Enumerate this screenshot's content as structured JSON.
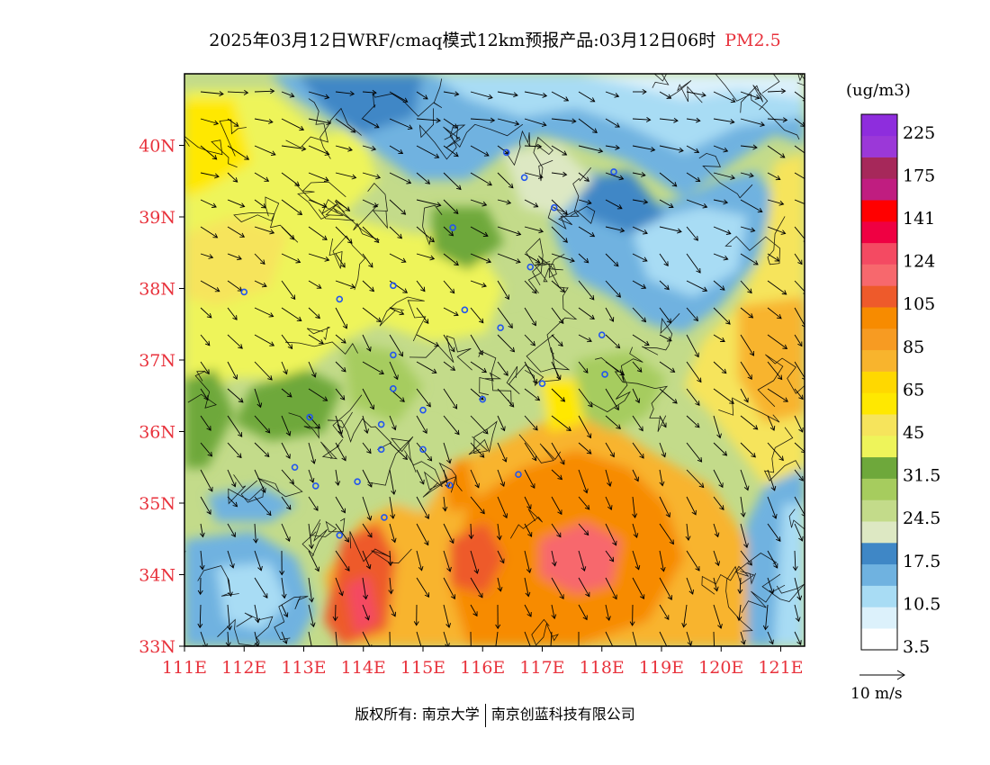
{
  "header": {
    "title": "2025年03月12日WRF/cmaq模式12km预报产品:03月12日06时",
    "pollutant": "PM2.5"
  },
  "map": {
    "lon_range": [
      111,
      121.4
    ],
    "lat_range": [
      33,
      41
    ],
    "x_ticks": [
      "111E",
      "112E",
      "113E",
      "114E",
      "115E",
      "116E",
      "117E",
      "118E",
      "119E",
      "120E",
      "121E"
    ],
    "y_ticks": [
      "33N",
      "34N",
      "35N",
      "36N",
      "37N",
      "38N",
      "39N",
      "40N"
    ],
    "tick_color": "#e8323c",
    "cities": [
      [
        116.4,
        39.9
      ],
      [
        116.7,
        39.55
      ],
      [
        117.2,
        39.13
      ],
      [
        118.2,
        39.63
      ],
      [
        115.5,
        38.85
      ],
      [
        116.8,
        38.3
      ],
      [
        114.5,
        38.04
      ],
      [
        113.6,
        37.85
      ],
      [
        112.0,
        37.95
      ],
      [
        115.7,
        37.7
      ],
      [
        116.3,
        37.45
      ],
      [
        114.5,
        37.07
      ],
      [
        114.5,
        36.6
      ],
      [
        115.0,
        36.3
      ],
      [
        116.0,
        36.45
      ],
      [
        117.0,
        36.67
      ],
      [
        118.0,
        37.35
      ],
      [
        118.05,
        36.8
      ],
      [
        113.1,
        36.2
      ],
      [
        114.3,
        36.1
      ],
      [
        114.3,
        35.75
      ],
      [
        115.0,
        35.75
      ],
      [
        112.85,
        35.5
      ],
      [
        113.2,
        35.24
      ],
      [
        113.9,
        35.3
      ],
      [
        115.45,
        35.25
      ],
      [
        116.6,
        35.4
      ],
      [
        114.35,
        34.8
      ],
      [
        113.6,
        34.55
      ]
    ]
  },
  "legend": {
    "unit": "(ug/m3)",
    "bins": [
      {
        "color": "#ffffff",
        "label": "3.5"
      },
      {
        "color": "#dcf1fb",
        "label": ""
      },
      {
        "color": "#a8dcf4",
        "label": "10.5"
      },
      {
        "color": "#6fb2e0",
        "label": ""
      },
      {
        "color": "#3f87c6",
        "label": "17.5"
      },
      {
        "color": "#dde8c3",
        "label": ""
      },
      {
        "color": "#c3db8a",
        "label": "24.5"
      },
      {
        "color": "#a6cc5e",
        "label": ""
      },
      {
        "color": "#6ea83b",
        "label": "31.5"
      },
      {
        "color": "#eef45a",
        "label": ""
      },
      {
        "color": "#f6e45c",
        "label": "45"
      },
      {
        "color": "#ffe800",
        "label": ""
      },
      {
        "color": "#ffd800",
        "label": "65"
      },
      {
        "color": "#f8b42d",
        "label": ""
      },
      {
        "color": "#f79b22",
        "label": "85"
      },
      {
        "color": "#f78b00",
        "label": ""
      },
      {
        "color": "#ee5a2b",
        "label": "105"
      },
      {
        "color": "#f7686d",
        "label": ""
      },
      {
        "color": "#f44a62",
        "label": "124"
      },
      {
        "color": "#ef0042",
        "label": ""
      },
      {
        "color": "#ff0000",
        "label": "141"
      },
      {
        "color": "#c01d80",
        "label": ""
      },
      {
        "color": "#a6285a",
        "label": "175"
      },
      {
        "color": "#9b38d8",
        "label": ""
      },
      {
        "color": "#8e2ddd",
        "label": "225"
      }
    ]
  },
  "wind_legend": {
    "label": "10 m/s"
  },
  "footer": {
    "copyright": "版权所有: 南京大学",
    "company": "南京创蓝科技有限公司"
  }
}
